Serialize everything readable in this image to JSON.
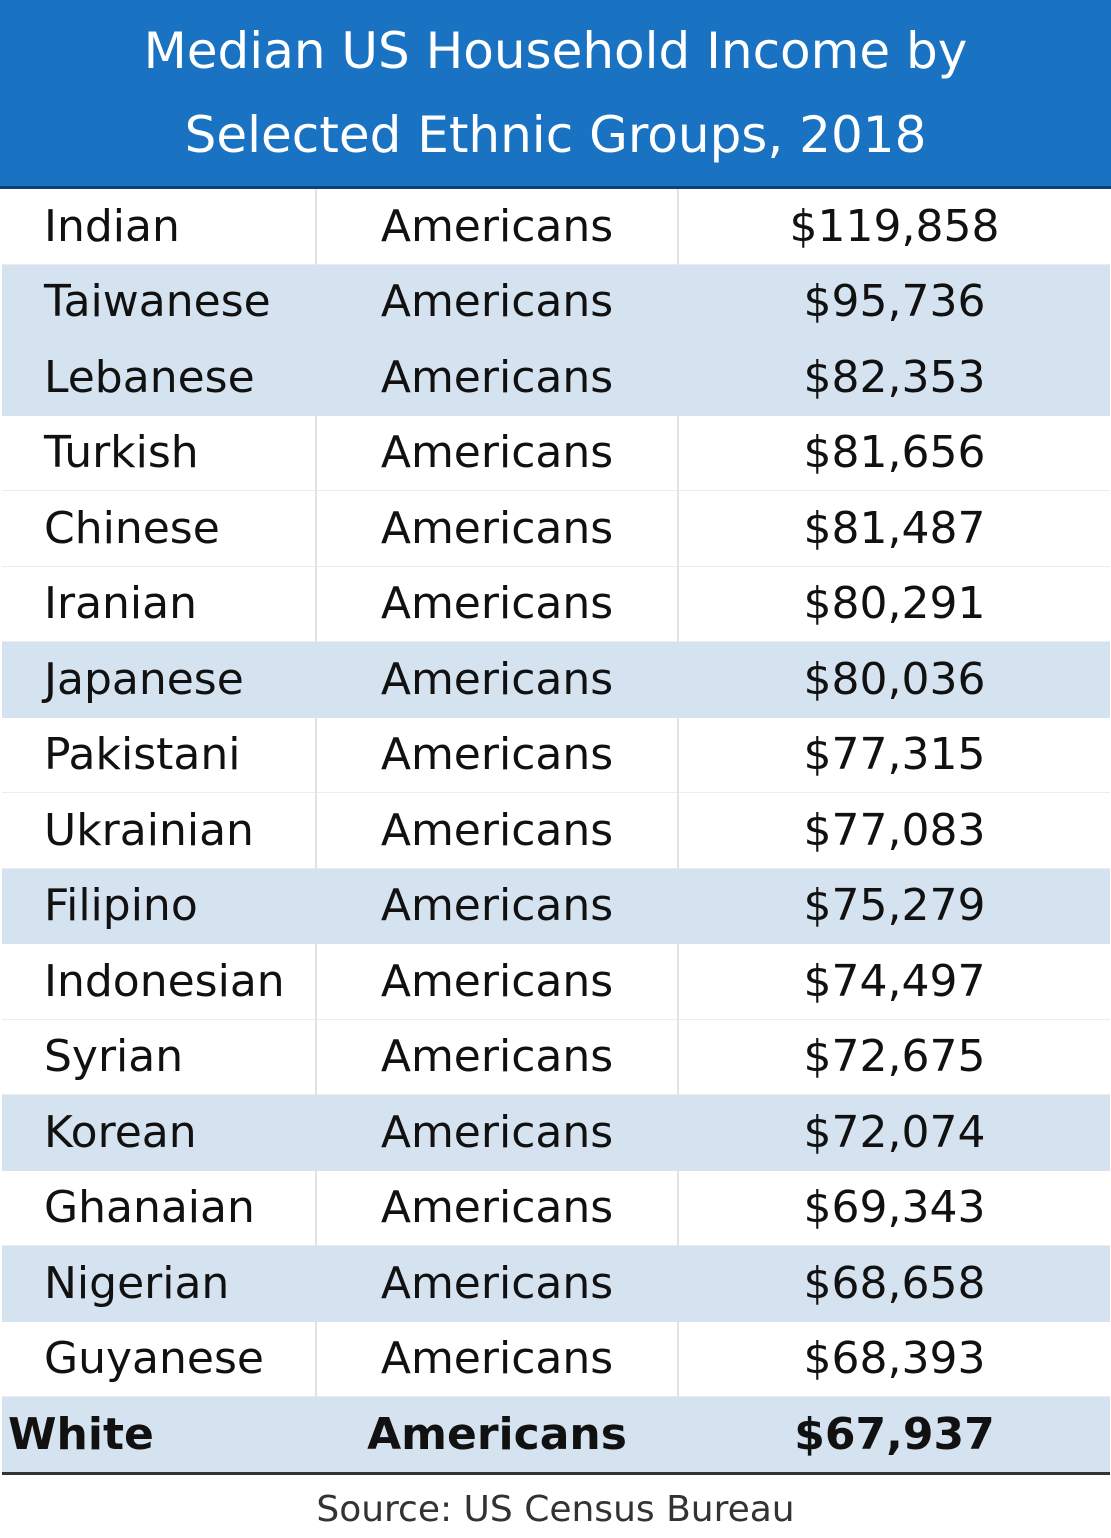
{
  "header": {
    "title": "Median US Household Income by Selected Ethnic Groups, 2018"
  },
  "table": {
    "rows": [
      [
        "Indian",
        "Americans",
        "$119,858"
      ],
      [
        "Taiwanese",
        "Americans",
        "$95,736"
      ],
      [
        "Lebanese",
        "Americans",
        "$82,353"
      ],
      [
        "Turkish",
        "Americans",
        "$81,656"
      ],
      [
        "Chinese",
        "Americans",
        "$81,487"
      ],
      [
        "Iranian",
        "Americans",
        "$80,291"
      ],
      [
        "Japanese",
        "Americans",
        "$80,036"
      ],
      [
        "Pakistani",
        "Americans",
        "$77,315"
      ],
      [
        "Ukrainian",
        "Americans",
        "$77,083"
      ],
      [
        "Filipino",
        "Americans",
        "$75,279"
      ],
      [
        "Indonesian",
        "Americans",
        "$74,497"
      ],
      [
        "Syrian",
        "Americans",
        "$72,675"
      ],
      [
        "Korean",
        "Americans",
        "$72,074"
      ],
      [
        "Ghanaian",
        "Americans",
        "$69,343"
      ],
      [
        "Nigerian",
        "Americans",
        "$68,658"
      ],
      [
        "Guyanese",
        "Americans",
        "$68,393"
      ],
      [
        "White",
        "Americans",
        "$67,937"
      ]
    ]
  },
  "footer": {
    "source": "Source: US Census Bureau"
  }
}
